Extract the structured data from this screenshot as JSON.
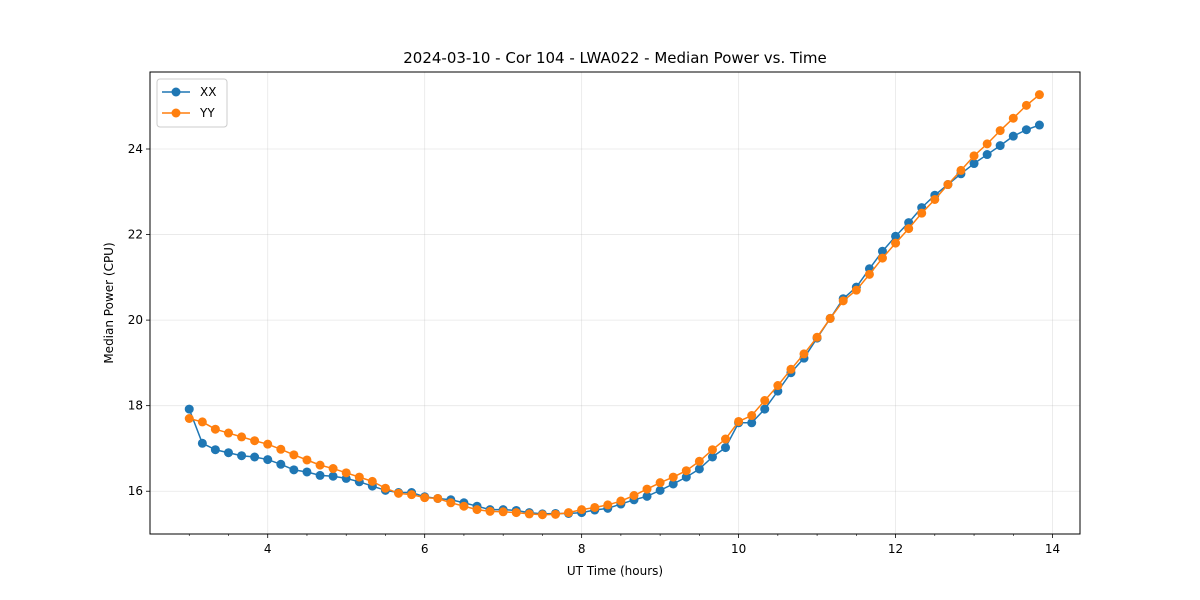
{
  "chart_data": {
    "type": "line",
    "title": "2024-03-10 - Cor 104 - LWA022 - Median Power vs. Time",
    "xlabel": "UT Time (hours)",
    "ylabel": "Median Power (CPU)",
    "xlim": [
      2.5,
      14.35
    ],
    "ylim": [
      15.0,
      25.8
    ],
    "xticks": [
      4,
      6,
      8,
      10,
      12,
      14
    ],
    "yticks": [
      16,
      18,
      20,
      22,
      24
    ],
    "xtick_labels": [
      "4",
      "6",
      "8",
      "10",
      "12",
      "14"
    ],
    "ytick_labels": [
      "16",
      "18",
      "20",
      "22",
      "24"
    ],
    "grid": true,
    "legend_position": "top-left",
    "x": [
      3.0,
      3.167,
      3.333,
      3.5,
      3.667,
      3.833,
      4.0,
      4.167,
      4.333,
      4.5,
      4.667,
      4.833,
      5.0,
      5.167,
      5.333,
      5.5,
      5.667,
      5.833,
      6.0,
      6.167,
      6.333,
      6.5,
      6.667,
      6.833,
      7.0,
      7.167,
      7.333,
      7.5,
      7.667,
      7.833,
      8.0,
      8.167,
      8.333,
      8.5,
      8.667,
      8.833,
      9.0,
      9.167,
      9.333,
      9.5,
      9.667,
      9.833,
      10.0,
      10.167,
      10.333,
      10.5,
      10.667,
      10.833,
      11.0,
      11.167,
      11.333,
      11.5,
      11.667,
      11.833,
      12.0,
      12.167,
      12.333,
      12.5,
      12.667,
      12.833,
      13.0,
      13.167,
      13.333,
      13.5,
      13.667,
      13.833
    ],
    "series": [
      {
        "name": "XX",
        "color": "#1f77b4",
        "values": [
          17.92,
          17.12,
          16.97,
          16.9,
          16.83,
          16.8,
          16.74,
          16.63,
          16.5,
          16.45,
          16.37,
          16.35,
          16.3,
          16.22,
          16.12,
          16.02,
          15.97,
          15.97,
          15.87,
          15.83,
          15.8,
          15.73,
          15.65,
          15.57,
          15.57,
          15.55,
          15.5,
          15.47,
          15.48,
          15.48,
          15.5,
          15.56,
          15.6,
          15.7,
          15.8,
          15.88,
          16.02,
          16.17,
          16.33,
          16.52,
          16.8,
          17.02,
          17.6,
          17.6,
          17.92,
          18.34,
          18.77,
          19.11,
          19.58,
          20.04,
          20.5,
          20.77,
          21.2,
          21.61,
          21.96,
          22.28,
          22.63,
          22.92,
          23.17,
          23.42,
          23.66,
          23.87,
          24.08,
          24.3,
          24.45,
          24.56
        ]
      },
      {
        "name": "YY",
        "color": "#ff7f0e",
        "values": [
          17.7,
          17.62,
          17.45,
          17.36,
          17.27,
          17.18,
          17.1,
          16.98,
          16.85,
          16.73,
          16.61,
          16.53,
          16.43,
          16.33,
          16.23,
          16.07,
          15.95,
          15.92,
          15.85,
          15.83,
          15.73,
          15.65,
          15.57,
          15.53,
          15.52,
          15.5,
          15.47,
          15.45,
          15.46,
          15.5,
          15.57,
          15.62,
          15.68,
          15.77,
          15.9,
          16.05,
          16.2,
          16.33,
          16.48,
          16.7,
          16.97,
          17.22,
          17.63,
          17.77,
          18.12,
          18.47,
          18.85,
          19.21,
          19.6,
          20.04,
          20.45,
          20.7,
          21.07,
          21.45,
          21.8,
          22.14,
          22.5,
          22.82,
          23.17,
          23.5,
          23.84,
          24.12,
          24.43,
          24.72,
          25.02,
          25.27
        ]
      }
    ]
  }
}
